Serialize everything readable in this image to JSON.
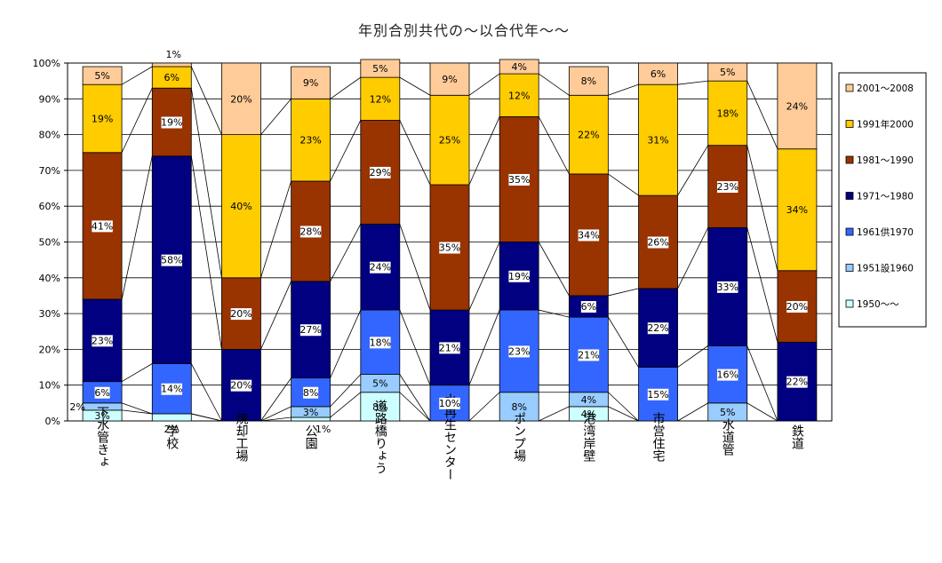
{
  "chart_data": {
    "type": "bar",
    "stacked": true,
    "percent": true,
    "title": "年別合別共代の～以合代年～～",
    "ylim": [
      0,
      100
    ],
    "yticks": [
      "0%",
      "10%",
      "20%",
      "30%",
      "40%",
      "50%",
      "60%",
      "70%",
      "80%",
      "90%",
      "100%"
    ],
    "grid": true,
    "legend_position": "right",
    "categories": [
      "下水管きょ",
      "学校",
      "焼却工場",
      "公園",
      "道路橋りょう",
      "水再生センター",
      "ポンプ場",
      "港湾岸壁",
      "市営住宅",
      "水道管",
      "鉄道"
    ],
    "series": [
      {
        "name": "1950～～",
        "color": "#ccffff",
        "values": [
          3,
          2,
          0,
          1,
          8,
          0,
          0,
          4,
          0,
          0,
          0
        ],
        "labels": [
          "3%",
          "2%",
          "",
          "1%",
          "8%",
          "",
          "",
          "4%",
          "",
          "",
          ""
        ]
      },
      {
        "name": "1951設1960",
        "color": "#99ccff",
        "values": [
          2,
          0,
          0,
          3,
          5,
          0,
          8,
          4,
          0,
          5,
          0
        ],
        "labels": [
          "2%",
          "",
          "",
          "3%",
          "5%",
          "",
          "8%",
          "4%",
          "",
          "5%",
          ""
        ]
      },
      {
        "name": "1961供1970",
        "color": "#3366ff",
        "values": [
          6,
          14,
          0,
          8,
          18,
          10,
          23,
          21,
          15,
          16,
          0
        ],
        "labels": [
          "6%",
          "14%",
          "",
          "8%",
          "18%",
          "10%",
          "23%",
          "21%",
          "15%",
          "16%",
          ""
        ]
      },
      {
        "name": "1971～1980",
        "color": "#000080",
        "values": [
          23,
          58,
          20,
          27,
          24,
          21,
          19,
          6,
          22,
          33,
          22
        ],
        "labels": [
          "23%",
          "58%",
          "20%",
          "27%",
          "24%",
          "21%",
          "19%",
          "6%",
          "22%",
          "33%",
          "22%"
        ]
      },
      {
        "name": "1981～1990",
        "color": "#993300",
        "values": [
          41,
          19,
          20,
          28,
          29,
          35,
          35,
          34,
          26,
          23,
          20
        ],
        "labels": [
          "41%",
          "19%",
          "20%",
          "28%",
          "29%",
          "35%",
          "35%",
          "34%",
          "26%",
          "23%",
          "20%"
        ]
      },
      {
        "name": "1991年2000",
        "color": "#ffcc00",
        "values": [
          19,
          6,
          40,
          23,
          12,
          25,
          12,
          22,
          31,
          18,
          34
        ],
        "labels": [
          "19%",
          "6%",
          "40%",
          "23%",
          "12%",
          "25%",
          "12%",
          "22%",
          "31%",
          "18%",
          "34%"
        ]
      },
      {
        "name": "2001～2008",
        "color": "#ffcc99",
        "values": [
          5,
          1,
          20,
          9,
          5,
          9,
          4,
          8,
          6,
          5,
          24
        ],
        "labels": [
          "5%",
          "1%",
          "20%",
          "9%",
          "5%",
          "9%",
          "4%",
          "8%",
          "6%",
          "5%",
          "24%"
        ]
      }
    ]
  }
}
